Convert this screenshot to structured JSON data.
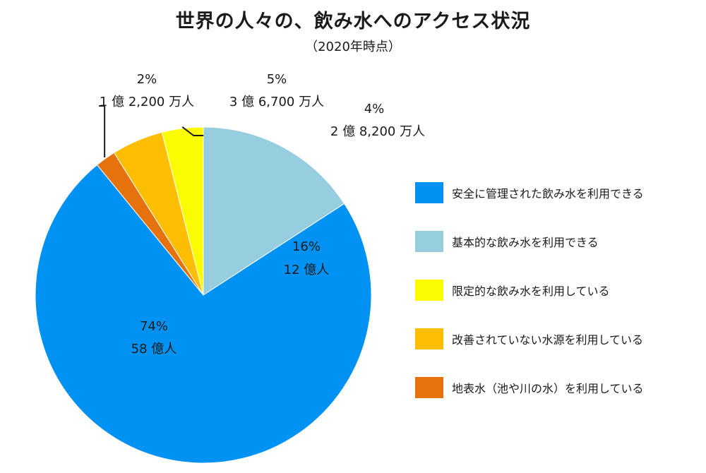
{
  "chart_data": {
    "type": "pie",
    "title": "世界の人々の、飲み水へのアクセス状況",
    "subtitle": "（2020年時点）",
    "slices": [
      {
        "label": "安全に管理された飲み水を利用できる",
        "value": 74,
        "percent_label": "74%",
        "count_label": "58 億人",
        "color": "#0092f2"
      },
      {
        "label": "基本的な飲み水を利用できる",
        "value": 16,
        "percent_label": "16%",
        "count_label": "12 億人",
        "color": "#96cddf"
      },
      {
        "label": "限定的な飲み水を利用している",
        "value": 4,
        "percent_label": "4%",
        "count_label": "2 億 8,200 万人",
        "color": "#fcfc00"
      },
      {
        "label": "改善されていない水源を利用している",
        "value": 5,
        "percent_label": "5%",
        "count_label": "3 億 6,700 万人",
        "color": "#fdbd00"
      },
      {
        "label": "地表水（池や川の水）を利用している",
        "value": 2,
        "percent_label": "2%",
        "count_label": "1 億 2,200 万人",
        "color": "#e6720d"
      }
    ],
    "legend_position": "right"
  }
}
